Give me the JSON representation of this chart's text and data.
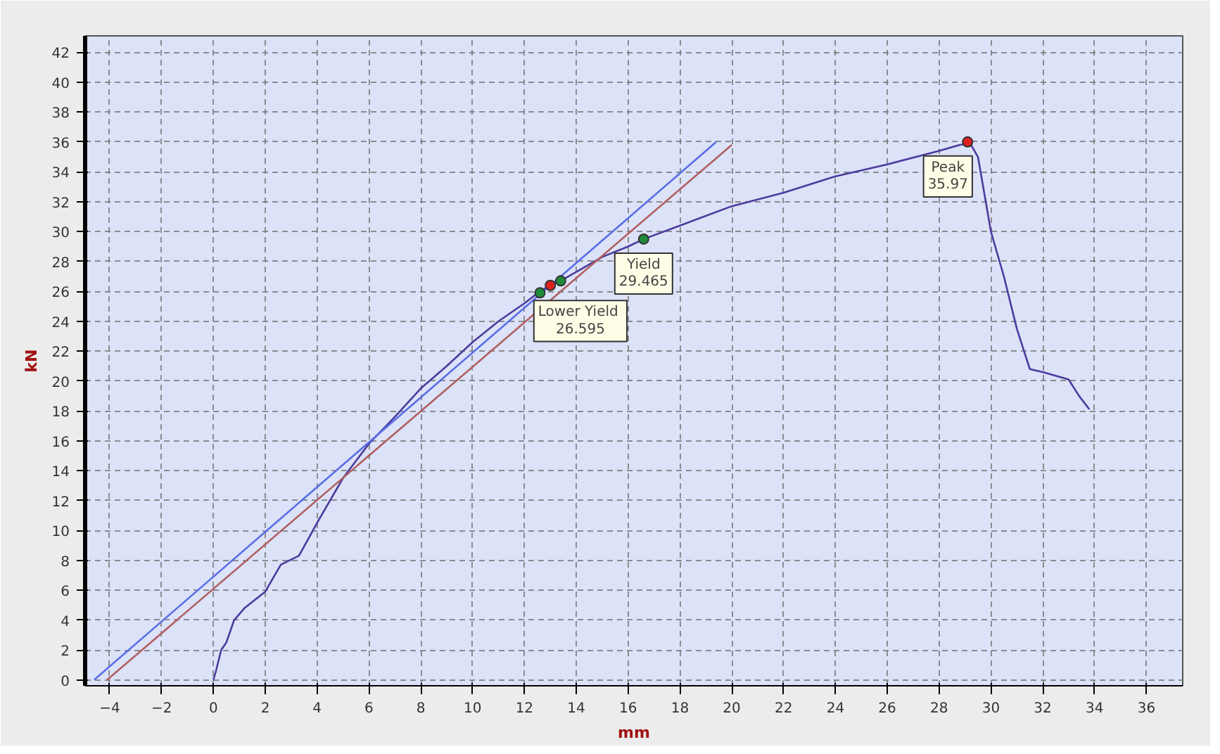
{
  "chart_data": {
    "type": "line",
    "xlabel": "mm",
    "ylabel": "kN",
    "xlim": [
      -4.95,
      37.4
    ],
    "ylim": [
      -0.4,
      43.1
    ],
    "xticks": [
      -4,
      -2,
      0,
      2,
      4,
      6,
      8,
      10,
      12,
      14,
      16,
      18,
      20,
      22,
      24,
      26,
      28,
      30,
      32,
      34,
      36
    ],
    "yticks": [
      0,
      2,
      4,
      6,
      8,
      10,
      12,
      14,
      16,
      18,
      20,
      22,
      24,
      26,
      28,
      30,
      32,
      34,
      36,
      38,
      40,
      42
    ],
    "grid": true,
    "line_style": "solid",
    "series": [
      {
        "color": "#4b3b9c",
        "x": [
          0,
          0.1,
          0.3,
          0.5,
          0.8,
          1.2,
          2,
          2.6,
          3.3,
          4,
          5,
          6,
          7,
          8,
          9,
          10,
          11,
          12,
          12.6,
          13,
          13.5,
          14,
          15,
          16,
          16.6,
          18,
          20,
          22,
          24,
          26,
          28,
          28.8,
          29.2,
          29.5,
          29.7,
          30,
          30.5,
          31,
          31.5,
          32,
          33,
          33.4,
          33.8
        ],
        "values": [
          0,
          0.6,
          2,
          2.5,
          4,
          4.8,
          5.9,
          7.7,
          8.3,
          10.5,
          13.5,
          15.8,
          17.6,
          19.5,
          21,
          22.6,
          24,
          25.2,
          26,
          26.4,
          26.8,
          27.3,
          28.3,
          29,
          29.5,
          30.4,
          31.7,
          32.6,
          33.7,
          34.5,
          35.4,
          35.8,
          35.9,
          35,
          33,
          30,
          27,
          23.5,
          20.8,
          20.6,
          20.1,
          19,
          18.1
        ]
      },
      {
        "color": "#5a6ee6",
        "x": [
          -4.6,
          19.4
        ],
        "values": [
          0,
          36
        ]
      },
      {
        "color": "#b06060",
        "x": [
          -4.1,
          20
        ],
        "values": [
          0,
          35.8
        ]
      },
      {
        "type": "scatter",
        "marker": "circle",
        "color": "#1f8a3a",
        "x": [
          12.6,
          13.4,
          16.6
        ],
        "values": [
          25.9,
          26.7,
          29.5
        ]
      },
      {
        "type": "scatter",
        "marker": "circle",
        "color": "#e02020",
        "x": [
          13,
          29.1
        ],
        "values": [
          26.4,
          36
        ]
      }
    ],
    "annotations": [
      {
        "text": "Lower  Yield\n26.595",
        "x": 13.4,
        "y": 26.7
      },
      {
        "text": "Yield\n29.465",
        "x": 16.6,
        "y": 29.5
      },
      {
        "text": "Peak\n35.97",
        "x": 29.1,
        "y": 36
      }
    ]
  }
}
